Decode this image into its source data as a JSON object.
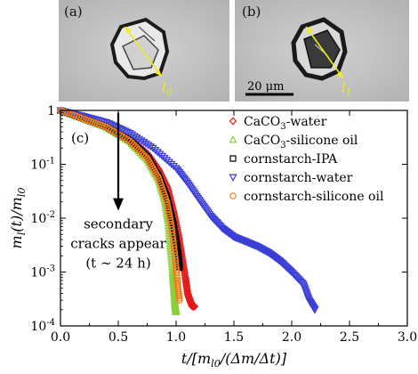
{
  "panels": [
    {
      "label": "(a)",
      "length_label": "l",
      "length_sub": "0"
    },
    {
      "label": "(b)",
      "length_label": "l",
      "length_sub": "1",
      "scale_bar": "20 μm"
    }
  ],
  "colors": {
    "panel_bg": "#bebebe",
    "arrow": "#f2ea1c",
    "CaCO3-water": "#e31a1c",
    "CaCO3-silicone oil": "#8ccf3a",
    "cornstarch-IPA": "#000000",
    "cornstarch-water": "#3b3fd6",
    "cornstarch-silicone oil": "#f07d1a"
  },
  "chart_data": {
    "type": "scatter",
    "panel_label": "(c)",
    "xlabel": "t/[m_l0/(Δm/Δt)]",
    "ylabel": "m_l(t)/m_l0",
    "xlim": [
      0,
      3.0
    ],
    "ylim": [
      0.0001,
      1
    ],
    "yscale": "log",
    "x_ticks": [
      "0.0",
      "0.5",
      "1.0",
      "1.5",
      "2.0",
      "2.5",
      "3.0"
    ],
    "y_ticks": [
      "10^-4",
      "10^-3",
      "10^-2",
      "10^-1",
      "1"
    ],
    "legend_position": "top-right",
    "annotation": {
      "lines": [
        "secondary",
        "cracks appear",
        "(t ∼ 24 h)"
      ],
      "arrow_from": [
        0.5,
        0.9
      ],
      "arrow_to": [
        0.5,
        0.016
      ]
    },
    "series": [
      {
        "name": "CaCO3-water",
        "marker": "diamond",
        "x": [
          0.0,
          0.2,
          0.4,
          0.6,
          0.75,
          0.85,
          0.93,
          0.98,
          1.02,
          1.05,
          1.08,
          1.1,
          1.12,
          1.14,
          1.16
        ],
        "y": [
          1.0,
          0.72,
          0.52,
          0.3,
          0.16,
          0.08,
          0.035,
          0.013,
          0.005,
          0.002,
          0.0008,
          0.0004,
          0.0003,
          0.00023,
          0.00023
        ]
      },
      {
        "name": "CaCO3-silicone oil",
        "marker": "triangle-up",
        "x": [
          0.0,
          0.2,
          0.4,
          0.6,
          0.75,
          0.85,
          0.9,
          0.93,
          0.95,
          0.97,
          0.98,
          0.99,
          1.0
        ],
        "y": [
          1.0,
          0.7,
          0.48,
          0.26,
          0.12,
          0.05,
          0.022,
          0.009,
          0.003,
          0.001,
          0.0005,
          0.00025,
          0.00018
        ]
      },
      {
        "name": "cornstarch-IPA",
        "marker": "square",
        "x": [
          0.0,
          0.2,
          0.4,
          0.6,
          0.75,
          0.85,
          0.92,
          0.97,
          1.0,
          1.02,
          1.03
        ],
        "y": [
          1.0,
          0.71,
          0.5,
          0.28,
          0.14,
          0.06,
          0.025,
          0.009,
          0.004,
          0.002,
          0.0012
        ]
      },
      {
        "name": "cornstarch-water",
        "marker": "triangle-down",
        "x": [
          0.0,
          0.2,
          0.4,
          0.6,
          0.8,
          1.0,
          1.1,
          1.2,
          1.3,
          1.4,
          1.5,
          1.6,
          1.7,
          1.8,
          1.9,
          2.0,
          2.1,
          2.15,
          2.2
        ],
        "y": [
          1.0,
          0.78,
          0.6,
          0.38,
          0.2,
          0.085,
          0.045,
          0.022,
          0.011,
          0.0065,
          0.0045,
          0.0037,
          0.003,
          0.0023,
          0.0016,
          0.001,
          0.0006,
          0.0003,
          0.0002
        ]
      },
      {
        "name": "cornstarch-silicone oil",
        "marker": "circle",
        "x": [
          0.0,
          0.2,
          0.4,
          0.6,
          0.75,
          0.85,
          0.92,
          0.96,
          0.99,
          1.01,
          1.03
        ],
        "y": [
          1.0,
          0.7,
          0.49,
          0.27,
          0.13,
          0.055,
          0.02,
          0.007,
          0.002,
          0.0007,
          0.0003
        ]
      }
    ]
  }
}
